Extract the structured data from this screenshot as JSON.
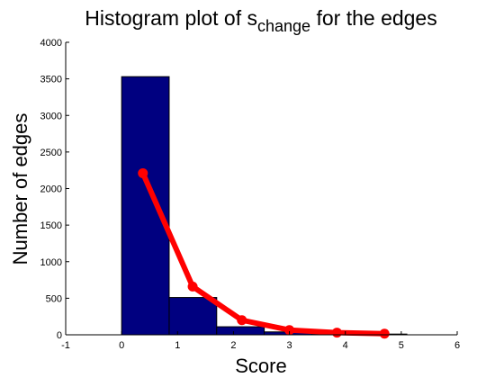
{
  "chart_data": {
    "type": "bar",
    "title": {
      "main": "Histogram plot of s",
      "subscript": "change",
      "suffix": " for the edges"
    },
    "xlabel": "Score",
    "ylabel": "Number of edges",
    "xlim": [
      -1,
      6
    ],
    "ylim": [
      0,
      4000
    ],
    "xticks": [
      "-1",
      "0",
      "1",
      "2",
      "3",
      "4",
      "5",
      "6"
    ],
    "yticks": [
      "0",
      "500",
      "1000",
      "1500",
      "2000",
      "2500",
      "3000",
      "3500",
      "4000"
    ],
    "xtick_values": [
      -1,
      0,
      1,
      2,
      3,
      4,
      5,
      6
    ],
    "ytick_values": [
      0,
      500,
      1000,
      1500,
      2000,
      2500,
      3000,
      3500,
      4000
    ],
    "bins": [
      {
        "x0": 0.0,
        "x1": 0.85,
        "value": 3530
      },
      {
        "x0": 0.85,
        "x1": 1.7,
        "value": 510
      },
      {
        "x0": 1.7,
        "x1": 2.55,
        "value": 110
      },
      {
        "x0": 2.55,
        "x1": 3.4,
        "value": 40
      },
      {
        "x0": 3.4,
        "x1": 4.25,
        "value": 15
      },
      {
        "x0": 4.25,
        "x1": 5.1,
        "value": 10
      }
    ],
    "series": [
      {
        "type": "line",
        "x": [
          0.38,
          1.27,
          2.15,
          3.0,
          3.85,
          4.7
        ],
        "values": [
          2210,
          660,
          200,
          65,
          30,
          15
        ]
      }
    ],
    "colors": {
      "bar": "#000080",
      "bar_edge": "#000000",
      "line": "#ff0000"
    },
    "grid": false
  }
}
